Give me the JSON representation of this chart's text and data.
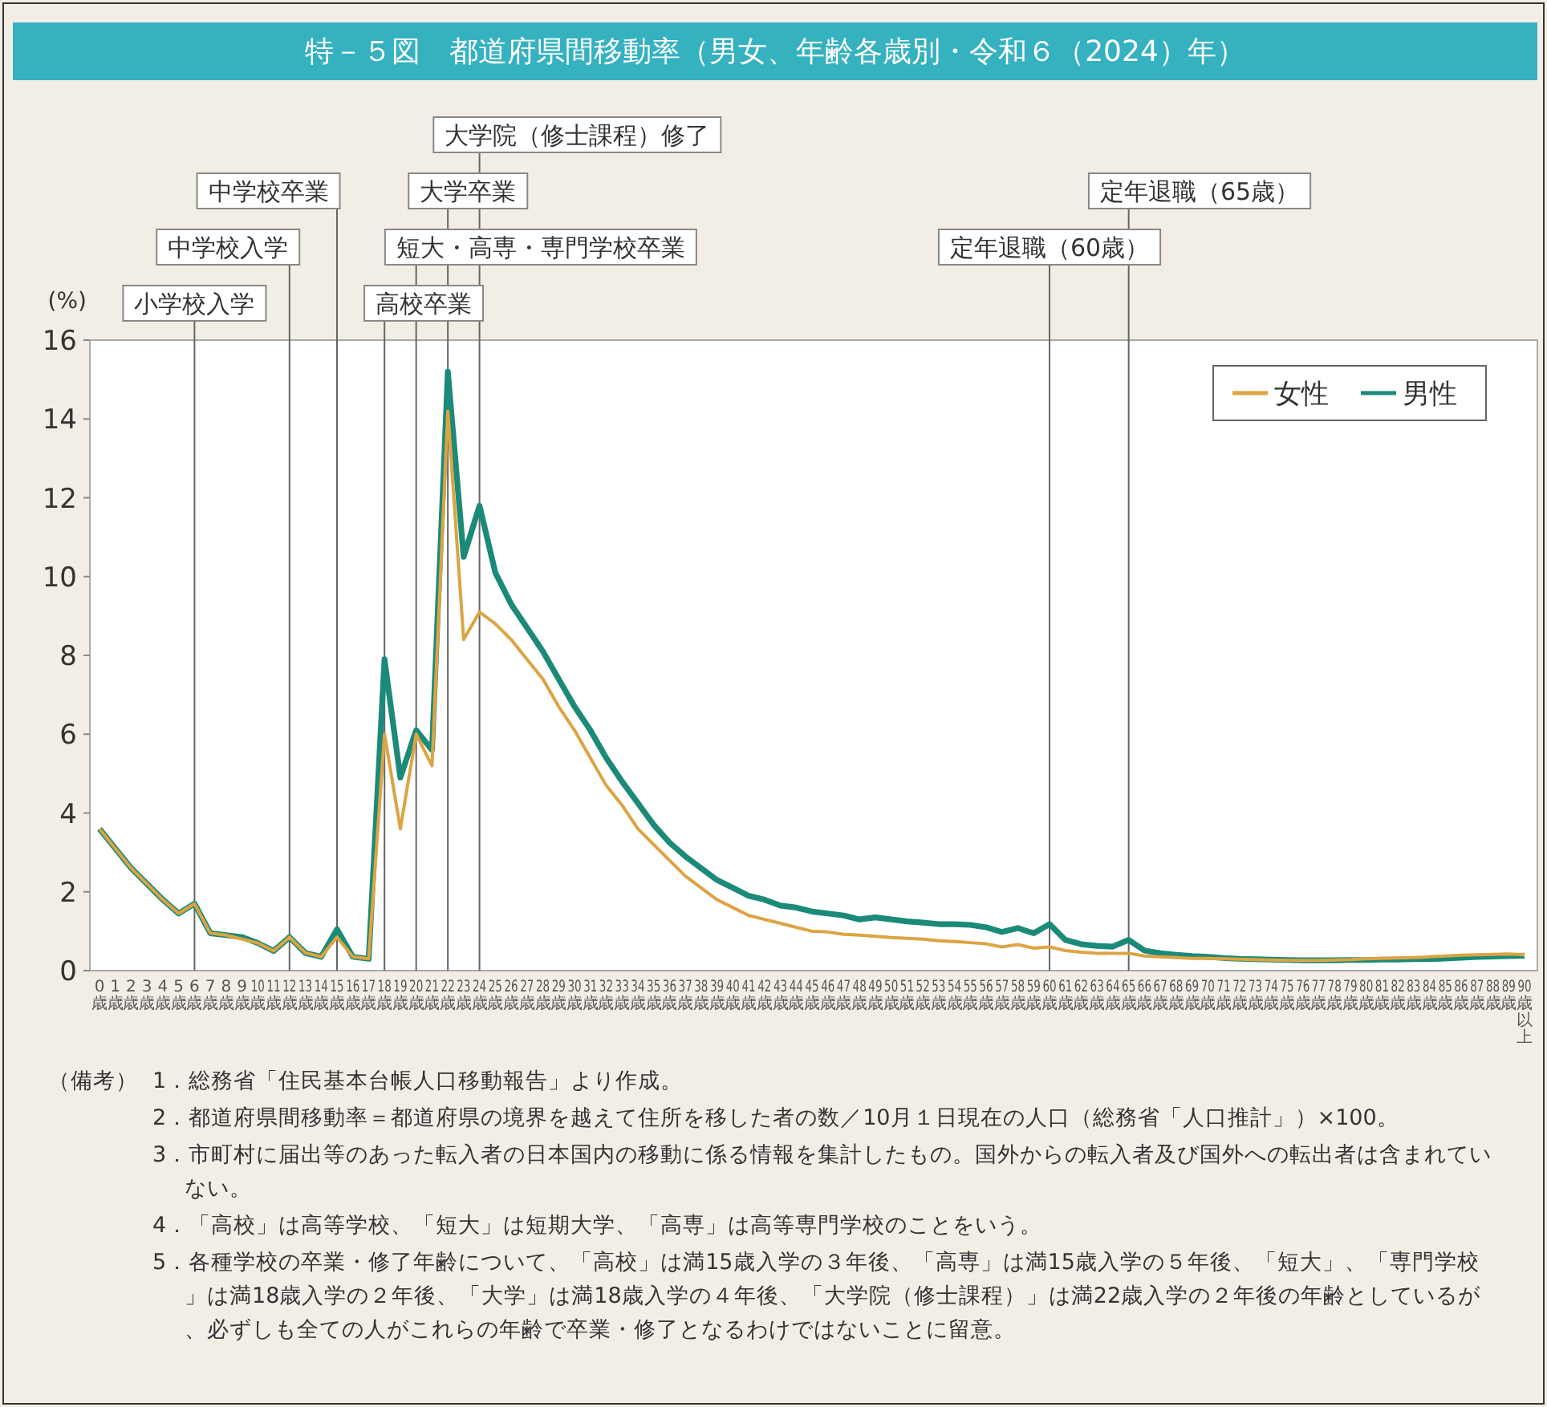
{
  "chart_data": {
    "type": "line",
    "title": "特－５図　都道府県間移動率（男女、年齢各歳別・令和６（2024）年）",
    "ylabel": "(%)",
    "categories": [
      "0歳",
      "1歳",
      "2歳",
      "3歳",
      "4歳",
      "5歳",
      "6歳",
      "7歳",
      "8歳",
      "9歳",
      "10歳",
      "11歳",
      "12歳",
      "13歳",
      "14歳",
      "15歳",
      "16歳",
      "17歳",
      "18歳",
      "19歳",
      "20歳",
      "21歳",
      "22歳",
      "23歳",
      "24歳",
      "25歳",
      "26歳",
      "27歳",
      "28歳",
      "29歳",
      "30歳",
      "31歳",
      "32歳",
      "33歳",
      "34歳",
      "35歳",
      "36歳",
      "37歳",
      "38歳",
      "39歳",
      "40歳",
      "41歳",
      "42歳",
      "43歳",
      "44歳",
      "45歳",
      "46歳",
      "47歳",
      "48歳",
      "49歳",
      "50歳",
      "51歳",
      "52歳",
      "53歳",
      "54歳",
      "55歳",
      "56歳",
      "57歳",
      "58歳",
      "59歳",
      "60歳",
      "61歳",
      "62歳",
      "63歳",
      "64歳",
      "65歳",
      "66歳",
      "67歳",
      "68歳",
      "69歳",
      "70歳",
      "71歳",
      "72歳",
      "73歳",
      "74歳",
      "75歳",
      "76歳",
      "77歳",
      "78歳",
      "79歳",
      "80歳",
      "81歳",
      "82歳",
      "83歳",
      "84歳",
      "85歳",
      "86歳",
      "87歳",
      "88歳",
      "89歳",
      "90歳以上"
    ],
    "series": [
      {
        "name": "女性",
        "color": "#dca443",
        "values": [
          3.6,
          3.1,
          2.6,
          2.2,
          1.8,
          1.45,
          1.7,
          0.95,
          0.9,
          0.8,
          0.7,
          0.5,
          0.85,
          0.45,
          0.35,
          0.85,
          0.35,
          0.3,
          6.0,
          3.6,
          6.0,
          5.2,
          14.2,
          8.4,
          9.1,
          8.8,
          8.4,
          7.9,
          7.4,
          6.7,
          6.1,
          5.4,
          4.7,
          4.2,
          3.6,
          3.2,
          2.8,
          2.4,
          2.1,
          1.8,
          1.6,
          1.4,
          1.3,
          1.2,
          1.1,
          1.0,
          0.98,
          0.92,
          0.9,
          0.87,
          0.84,
          0.82,
          0.8,
          0.76,
          0.74,
          0.71,
          0.68,
          0.6,
          0.66,
          0.57,
          0.6,
          0.51,
          0.47,
          0.44,
          0.44,
          0.44,
          0.37,
          0.35,
          0.33,
          0.31,
          0.31,
          0.3,
          0.29,
          0.28,
          0.27,
          0.26,
          0.26,
          0.26,
          0.27,
          0.28,
          0.3,
          0.31,
          0.32,
          0.33,
          0.35,
          0.37,
          0.39,
          0.4,
          0.41,
          0.42,
          0.4
        ]
      },
      {
        "name": "男性",
        "color": "#1b8a78",
        "values": [
          3.6,
          3.1,
          2.6,
          2.2,
          1.8,
          1.45,
          1.7,
          0.95,
          0.9,
          0.85,
          0.7,
          0.5,
          0.85,
          0.45,
          0.35,
          1.05,
          0.35,
          0.3,
          7.9,
          4.9,
          6.1,
          5.6,
          15.2,
          10.5,
          11.8,
          10.1,
          9.3,
          8.7,
          8.1,
          7.4,
          6.7,
          6.1,
          5.4,
          4.8,
          4.25,
          3.7,
          3.25,
          2.9,
          2.6,
          2.3,
          2.1,
          1.9,
          1.8,
          1.65,
          1.6,
          1.5,
          1.45,
          1.4,
          1.3,
          1.35,
          1.3,
          1.25,
          1.22,
          1.18,
          1.18,
          1.16,
          1.1,
          0.98,
          1.08,
          0.95,
          1.18,
          0.78,
          0.67,
          0.63,
          0.61,
          0.78,
          0.51,
          0.44,
          0.4,
          0.37,
          0.35,
          0.32,
          0.3,
          0.29,
          0.28,
          0.27,
          0.26,
          0.26,
          0.26,
          0.27,
          0.27,
          0.28,
          0.28,
          0.29,
          0.29,
          0.31,
          0.33,
          0.35,
          0.36,
          0.37,
          0.38
        ]
      }
    ],
    "ylim": [
      0,
      16
    ],
    "yticks": [
      0,
      2,
      4,
      6,
      8,
      10,
      12,
      14,
      16
    ],
    "grid": false,
    "legend": "top right",
    "marker": "none",
    "line_style": "solid",
    "ref_lines": [
      {
        "axis": "x",
        "value": "6歳",
        "label": "小学校入学"
      },
      {
        "axis": "x",
        "value": "12歳",
        "label": "中学校入学"
      },
      {
        "axis": "x",
        "value": "15歳",
        "label": "中学校卒業"
      },
      {
        "axis": "x",
        "value": "18歳",
        "label": "高校卒業"
      },
      {
        "axis": "x",
        "value": "20歳",
        "label": "短大・高専・専門学校卒業"
      },
      {
        "axis": "x",
        "value": "22歳",
        "label": "大学卒業"
      },
      {
        "axis": "x",
        "value": "24歳",
        "label": "大学院（修士課程）修了"
      },
      {
        "axis": "x",
        "value": "60歳",
        "label": "定年退職（60歳）"
      },
      {
        "axis": "x",
        "value": "65歳",
        "label": "定年退職（65歳）"
      }
    ],
    "annotations": [
      "（備考）",
      "1．総務省「住民基本台帳人口移動報告」より作成。",
      "2．都道府県間移動率＝都道府県の境界を越えて住所を移した者の数／10月１日現在の人口（総務省「人口推計」）×100。",
      "3．市町村に届出等のあった転入者の日本国内の移動に係る情報を集計したもの。国外からの転入者及び国外への転出者は含まれていない。",
      "4．「高校」は高等学校、「短大」は短期大学、「高専」は高等専門学校のことをいう。",
      "5．各種学校の卒業・修了年齢について、「高校」は満15歳入学の３年後、「高専」は満15歳入学の５年後、「短大」、「専門学校」は満18歳入学の２年後、「大学」は満18歳入学の４年後、「大学院（修士課程）」は満22歳入学の２年後の年齢としているが、必ずしも全ての人がこれらの年齢で卒業・修了となるわけではないことに留意。"
    ]
  }
}
